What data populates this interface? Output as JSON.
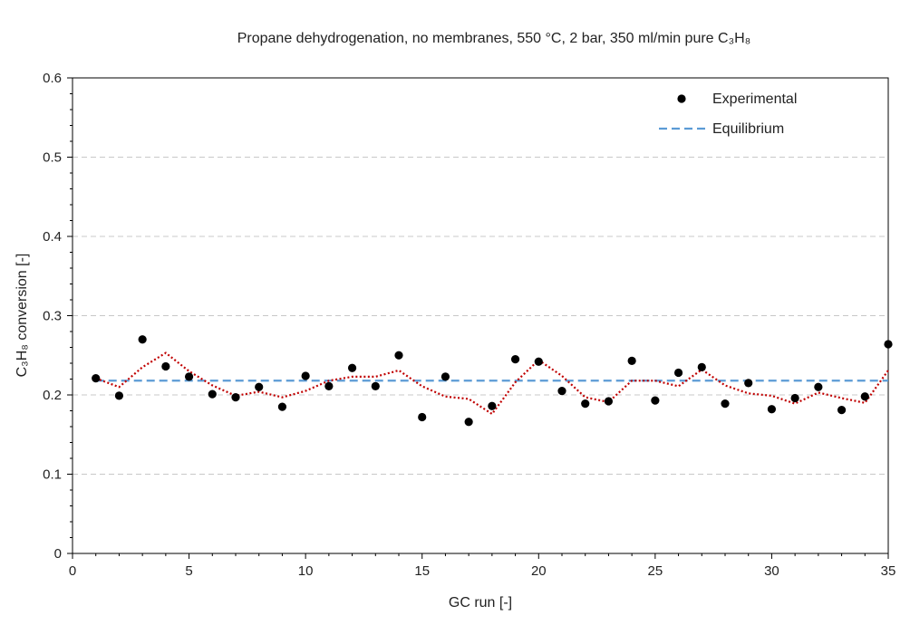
{
  "chart_data": {
    "type": "scatter",
    "title": "Propane dehydrogenation, no membranes,  550 °C, 2 bar, 350 ml/min  pure C₃H₈",
    "xlabel": "GC run [-]",
    "ylabel": "C₃H₈ conversion [-]",
    "xlim": [
      0,
      35
    ],
    "ylim": [
      0,
      0.6
    ],
    "xticks": [
      0,
      5,
      10,
      15,
      20,
      25,
      30,
      35
    ],
    "yticks": [
      0,
      0.1,
      0.2,
      0.3,
      0.4,
      0.5,
      0.6
    ],
    "ytick_labels": [
      "0",
      "0.1",
      "0.2",
      "0.3",
      "0.4",
      "0.5",
      "0.6"
    ],
    "grid": "horizontal dashed",
    "legend_position": "top-right",
    "series": [
      {
        "name": "Experimental",
        "kind": "markers",
        "color": "#000000",
        "x": [
          1,
          2,
          3,
          4,
          5,
          6,
          7,
          8,
          9,
          10,
          11,
          12,
          13,
          14,
          15,
          16,
          17,
          18,
          19,
          20,
          21,
          22,
          23,
          24,
          25,
          26,
          27,
          28,
          29,
          30,
          31,
          32,
          33,
          34,
          35
        ],
        "y": [
          0.221,
          0.199,
          0.27,
          0.236,
          0.223,
          0.201,
          0.197,
          0.21,
          0.185,
          0.224,
          0.211,
          0.234,
          0.211,
          0.25,
          0.172,
          0.223,
          0.166,
          0.186,
          0.245,
          0.242,
          0.205,
          0.189,
          0.192,
          0.243,
          0.193,
          0.228,
          0.235,
          0.189,
          0.215,
          0.182,
          0.196,
          0.21,
          0.181,
          0.198,
          0.264
        ]
      },
      {
        "name": "Equilibrium",
        "kind": "dashed-line",
        "color": "#5b9bd5",
        "x": [
          1,
          35
        ],
        "y": [
          0.218,
          0.218
        ]
      },
      {
        "kind": "dotted-trend",
        "color": "#c00000",
        "x": [
          1,
          2,
          3,
          4,
          5,
          6,
          7,
          8,
          9,
          10,
          11,
          12,
          13,
          14,
          15,
          16,
          17,
          18,
          19,
          20,
          21,
          22,
          23,
          24,
          25,
          26,
          27,
          28,
          29,
          30,
          31,
          32,
          33,
          34,
          35
        ],
        "y": [
          0.221,
          0.21,
          0.235,
          0.253,
          0.23,
          0.212,
          0.199,
          0.204,
          0.197,
          0.205,
          0.218,
          0.223,
          0.223,
          0.231,
          0.211,
          0.198,
          0.195,
          0.176,
          0.216,
          0.244,
          0.224,
          0.197,
          0.191,
          0.218,
          0.218,
          0.211,
          0.232,
          0.212,
          0.202,
          0.199,
          0.189,
          0.203,
          0.196,
          0.19,
          0.231
        ]
      }
    ]
  }
}
